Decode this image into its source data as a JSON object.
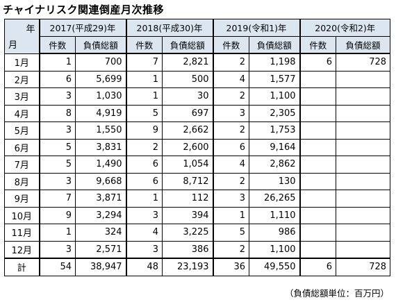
{
  "title": "チャイナリスク関連倒産月次推移",
  "corner": {
    "year_label": "年",
    "month_label": "月"
  },
  "years": [
    "2017(平成29)年",
    "2018(平成30)年",
    "2019(令和1)年",
    "2020(令和2)年"
  ],
  "sub_headers": {
    "count": "件数",
    "debt": "負債総額"
  },
  "rows": [
    {
      "month": "1月",
      "data": [
        [
          "1",
          "700"
        ],
        [
          "7",
          "2,821"
        ],
        [
          "2",
          "1,198"
        ],
        [
          "6",
          "728"
        ]
      ]
    },
    {
      "month": "2月",
      "data": [
        [
          "6",
          "5,699"
        ],
        [
          "1",
          "500"
        ],
        [
          "4",
          "1,577"
        ],
        [
          "",
          ""
        ]
      ]
    },
    {
      "month": "3月",
      "data": [
        [
          "3",
          "1,030"
        ],
        [
          "1",
          "30"
        ],
        [
          "2",
          "1,100"
        ],
        [
          "",
          ""
        ]
      ]
    },
    {
      "month": "4月",
      "data": [
        [
          "8",
          "4,919"
        ],
        [
          "5",
          "697"
        ],
        [
          "3",
          "2,305"
        ],
        [
          "",
          ""
        ]
      ]
    },
    {
      "month": "5月",
      "data": [
        [
          "3",
          "1,550"
        ],
        [
          "9",
          "2,662"
        ],
        [
          "2",
          "1,753"
        ],
        [
          "",
          ""
        ]
      ]
    },
    {
      "month": "6月",
      "data": [
        [
          "5",
          "3,831"
        ],
        [
          "2",
          "2,600"
        ],
        [
          "6",
          "9,164"
        ],
        [
          "",
          ""
        ]
      ]
    },
    {
      "month": "7月",
      "data": [
        [
          "5",
          "1,490"
        ],
        [
          "6",
          "1,054"
        ],
        [
          "4",
          "2,862"
        ],
        [
          "",
          ""
        ]
      ]
    },
    {
      "month": "8月",
      "data": [
        [
          "3",
          "9,668"
        ],
        [
          "6",
          "8,712"
        ],
        [
          "2",
          "130"
        ],
        [
          "",
          ""
        ]
      ]
    },
    {
      "month": "9月",
      "data": [
        [
          "7",
          "3,871"
        ],
        [
          "1",
          "112"
        ],
        [
          "3",
          "26,265"
        ],
        [
          "",
          ""
        ]
      ]
    },
    {
      "month": "10月",
      "data": [
        [
          "9",
          "3,294"
        ],
        [
          "3",
          "394"
        ],
        [
          "1",
          "1,110"
        ],
        [
          "",
          ""
        ]
      ]
    },
    {
      "month": "11月",
      "data": [
        [
          "1",
          "324"
        ],
        [
          "4",
          "3,225"
        ],
        [
          "5",
          "986"
        ],
        [
          "",
          ""
        ]
      ]
    },
    {
      "month": "12月",
      "data": [
        [
          "3",
          "2,571"
        ],
        [
          "3",
          "386"
        ],
        [
          "2",
          "1,100"
        ],
        [
          "",
          ""
        ]
      ]
    }
  ],
  "total": {
    "label": "計",
    "data": [
      [
        "54",
        "38,947"
      ],
      [
        "48",
        "23,193"
      ],
      [
        "36",
        "49,550"
      ],
      [
        "6",
        "728"
      ]
    ]
  },
  "unit_note": "（負債総額単位：百万円）",
  "colors": {
    "header_bg": "#dce6f1",
    "border": "#000000"
  }
}
